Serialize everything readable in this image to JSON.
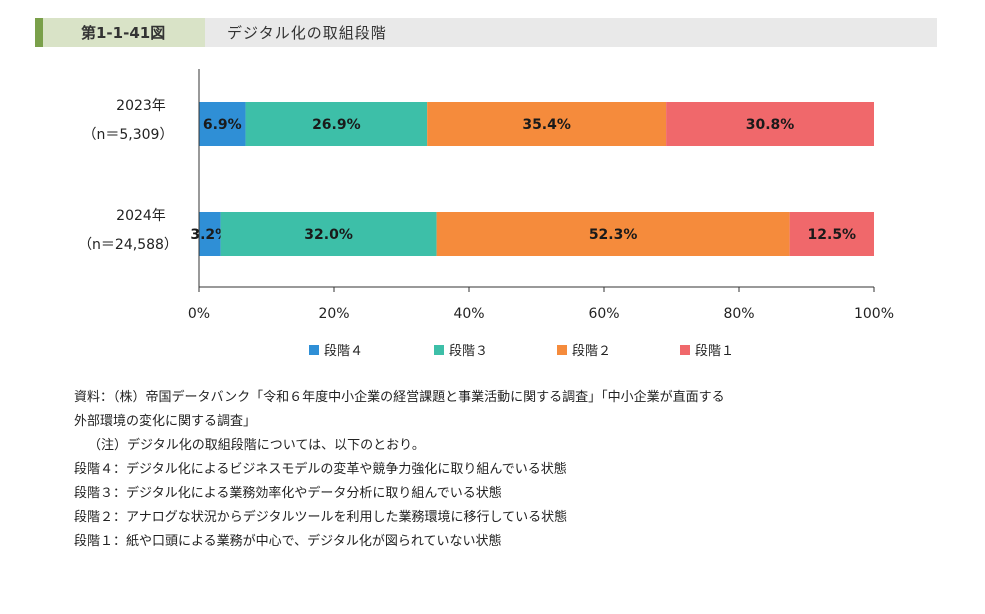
{
  "figure": {
    "number": "第1-1-41図",
    "title": "デジタル化の取組段階"
  },
  "colors": {
    "stage4": "#2f8fd6",
    "stage3": "#3dbfa8",
    "stage2": "#f58b3c",
    "stage1": "#f0686b"
  },
  "chart_data": {
    "type": "bar",
    "orientation": "horizontal",
    "stacked": true,
    "categories": [
      {
        "year": "2023年",
        "n": "（n＝5,309）"
      },
      {
        "year": "2024年",
        "n": "（n＝24,588）"
      }
    ],
    "series": [
      {
        "name": "段階４",
        "color": "#2f8fd6",
        "values": [
          6.9,
          3.2
        ],
        "labels": [
          "6.9%",
          "3.2%"
        ]
      },
      {
        "name": "段階３",
        "color": "#3dbfa8",
        "values": [
          26.9,
          32.0
        ],
        "labels": [
          "26.9%",
          "32.0%"
        ]
      },
      {
        "name": "段階２",
        "color": "#f58b3c",
        "values": [
          35.4,
          52.3
        ],
        "labels": [
          "35.4%",
          "52.3%"
        ]
      },
      {
        "name": "段階１",
        "color": "#f0686b",
        "values": [
          30.8,
          12.5
        ],
        "labels": [
          "30.8%",
          "12.5%"
        ]
      }
    ],
    "xlim": [
      0,
      100
    ],
    "xticks": [
      "0%",
      "20%",
      "40%",
      "60%",
      "80%",
      "100%"
    ],
    "grid": false,
    "legend_position": "bottom"
  },
  "notes": {
    "source_line1": "資料：（株）帝国データバンク「令和６年度中小企業の経営課題と事業活動に関する調査」「中小企業が直面する",
    "source_line2": "外部環境の変化に関する調査」",
    "note_intro": "（注）デジタル化の取組段階については、以下のとおり。",
    "stage4_desc": "段階４：デジタル化によるビジネスモデルの変革や競争力強化に取り組んでいる状態",
    "stage3_desc": "段階３：デジタル化による業務効率化やデータ分析に取り組んでいる状態",
    "stage2_desc": "段階２：アナログな状況からデジタルツールを利用した業務環境に移行している状態",
    "stage1_desc": "段階１：紙や口頭による業務が中心で、デジタル化が図られていない状態"
  }
}
